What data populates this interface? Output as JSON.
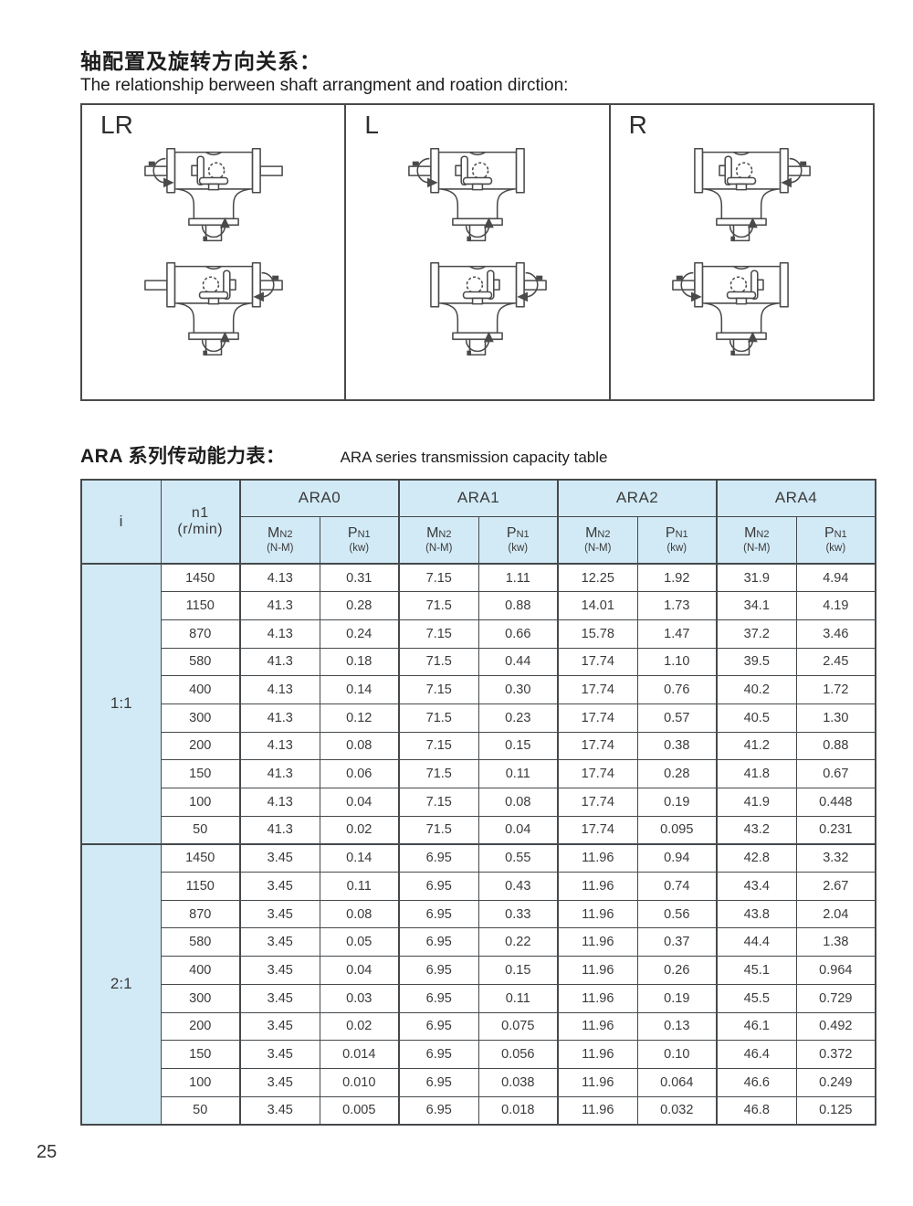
{
  "page": {
    "number": "25"
  },
  "heading": {
    "zh": "轴配置及旋转方向关系：",
    "en": "The relationship berween shaft arrangment and roation dirction:"
  },
  "diagram": {
    "panels": [
      {
        "label": "LR",
        "units": [
          {
            "gear": "left",
            "left_shaft": "arrow",
            "right_shaft": "plain"
          },
          {
            "gear": "right",
            "left_shaft": "plain",
            "right_shaft": "arrow"
          }
        ]
      },
      {
        "label": "L",
        "units": [
          {
            "gear": "left",
            "left_shaft": "arrow",
            "right_shaft": "none"
          },
          {
            "gear": "right",
            "left_shaft": "none",
            "right_shaft": "arrow"
          }
        ]
      },
      {
        "label": "R",
        "units": [
          {
            "gear": "left",
            "left_shaft": "none",
            "right_shaft": "arrow"
          },
          {
            "gear": "right",
            "left_shaft": "arrow",
            "right_shaft": "none"
          }
        ]
      }
    ]
  },
  "table_title": {
    "zh": "ARA 系列传动能力表：",
    "en": "ARA series transmission capacity table"
  },
  "table": {
    "col_i": "i",
    "col_n1_main": "n1",
    "col_n1_sub": "(r/min)",
    "groups": [
      "ARA0",
      "ARA1",
      "ARA2",
      "ARA4"
    ],
    "subcols": [
      {
        "sym": "M",
        "sub": "N2",
        "unit": "(N-M)"
      },
      {
        "sym": "P",
        "sub": "N1",
        "unit": "(kw)"
      }
    ],
    "sections": [
      {
        "ratio": "1:1",
        "rows": [
          [
            "1450",
            "4.13",
            "0.31",
            "7.15",
            "1.11",
            "12.25",
            "1.92",
            "31.9",
            "4.94"
          ],
          [
            "1150",
            "41.3",
            "0.28",
            "71.5",
            "0.88",
            "14.01",
            "1.73",
            "34.1",
            "4.19"
          ],
          [
            "870",
            "4.13",
            "0.24",
            "7.15",
            "0.66",
            "15.78",
            "1.47",
            "37.2",
            "3.46"
          ],
          [
            "580",
            "41.3",
            "0.18",
            "71.5",
            "0.44",
            "17.74",
            "1.10",
            "39.5",
            "2.45"
          ],
          [
            "400",
            "4.13",
            "0.14",
            "7.15",
            "0.30",
            "17.74",
            "0.76",
            "40.2",
            "1.72"
          ],
          [
            "300",
            "41.3",
            "0.12",
            "71.5",
            "0.23",
            "17.74",
            "0.57",
            "40.5",
            "1.30"
          ],
          [
            "200",
            "4.13",
            "0.08",
            "7.15",
            "0.15",
            "17.74",
            "0.38",
            "41.2",
            "0.88"
          ],
          [
            "150",
            "41.3",
            "0.06",
            "71.5",
            "0.11",
            "17.74",
            "0.28",
            "41.8",
            "0.67"
          ],
          [
            "100",
            "4.13",
            "0.04",
            "7.15",
            "0.08",
            "17.74",
            "0.19",
            "41.9",
            "0.448"
          ],
          [
            "50",
            "41.3",
            "0.02",
            "71.5",
            "0.04",
            "17.74",
            "0.095",
            "43.2",
            "0.231"
          ]
        ]
      },
      {
        "ratio": "2:1",
        "rows": [
          [
            "1450",
            "3.45",
            "0.14",
            "6.95",
            "0.55",
            "11.96",
            "0.94",
            "42.8",
            "3.32"
          ],
          [
            "1150",
            "3.45",
            "0.11",
            "6.95",
            "0.43",
            "11.96",
            "0.74",
            "43.4",
            "2.67"
          ],
          [
            "870",
            "3.45",
            "0.08",
            "6.95",
            "0.33",
            "11.96",
            "0.56",
            "43.8",
            "2.04"
          ],
          [
            "580",
            "3.45",
            "0.05",
            "6.95",
            "0.22",
            "11.96",
            "0.37",
            "44.4",
            "1.38"
          ],
          [
            "400",
            "3.45",
            "0.04",
            "6.95",
            "0.15",
            "11.96",
            "0.26",
            "45.1",
            "0.964"
          ],
          [
            "300",
            "3.45",
            "0.03",
            "6.95",
            "0.11",
            "11.96",
            "0.19",
            "45.5",
            "0.729"
          ],
          [
            "200",
            "3.45",
            "0.02",
            "6.95",
            "0.075",
            "11.96",
            "0.13",
            "46.1",
            "0.492"
          ],
          [
            "150",
            "3.45",
            "0.014",
            "6.95",
            "0.056",
            "11.96",
            "0.10",
            "46.4",
            "0.372"
          ],
          [
            "100",
            "3.45",
            "0.010",
            "6.95",
            "0.038",
            "11.96",
            "0.064",
            "46.6",
            "0.249"
          ],
          [
            "50",
            "3.45",
            "0.005",
            "6.95",
            "0.018",
            "11.96",
            "0.032",
            "46.8",
            "0.125"
          ]
        ]
      }
    ]
  },
  "colors": {
    "header_bg": "#d2eaf6",
    "table_border": "#45494c",
    "text": "#3a3a3a",
    "line": "#4a4a4a"
  }
}
